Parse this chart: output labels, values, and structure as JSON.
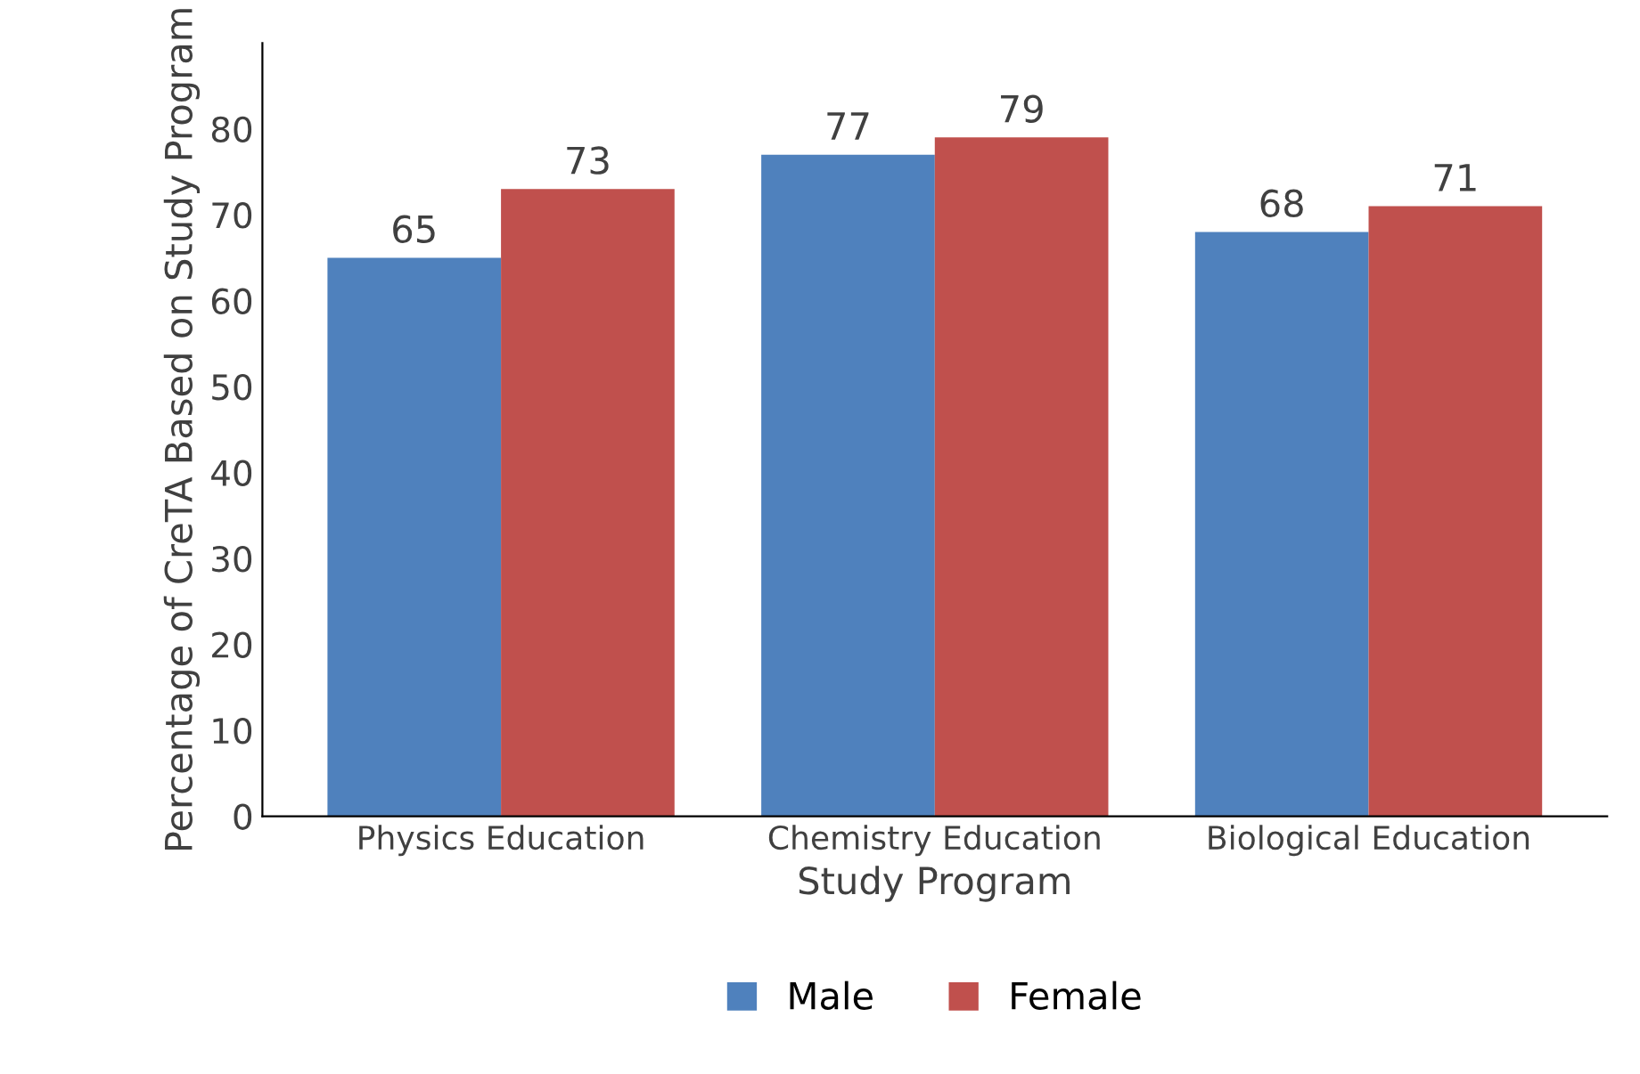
{
  "chart_data": {
    "type": "bar",
    "xlabel": "Study Program",
    "ylabel": "Percentage of CreTA Based on Study Program",
    "categories": [
      "Physics Education",
      "Chemistry Education",
      "Biological Education"
    ],
    "series": [
      {
        "name": "Male",
        "color": "#4f81bd",
        "values": [
          65,
          77,
          68
        ]
      },
      {
        "name": "Female",
        "color": "#c0504d",
        "values": [
          73,
          79,
          71
        ]
      }
    ],
    "ylim": [
      0,
      90
    ],
    "yticks": [
      0,
      10,
      20,
      30,
      40,
      50,
      60,
      70,
      80
    ],
    "grid": false,
    "legend": "bottom",
    "data_labels": true
  }
}
